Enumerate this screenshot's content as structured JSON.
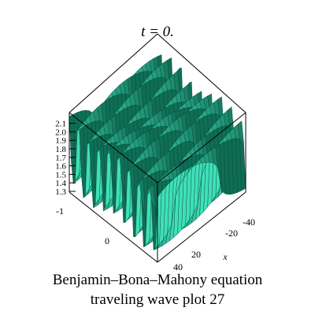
{
  "chart_data": {
    "type": "surface3d",
    "title": "t = 0.",
    "xlabel": "x",
    "ylabel": "",
    "zlabel": "",
    "x_ticks": [
      "-40",
      "-20",
      "20",
      "40"
    ],
    "y_ticks": [
      "-1",
      "0"
    ],
    "z_ticks": [
      "1.3",
      "1.4",
      "1.5",
      "1.6",
      "1.7",
      "1.8",
      "1.9",
      "2.0",
      "2.1"
    ],
    "xlim": [
      -50,
      50
    ],
    "ylim": [
      -1.5,
      1.5
    ],
    "zlim": [
      1.25,
      2.15
    ],
    "colors": {
      "surface_light": "#3fe0b8",
      "surface_dark": "#0f6e55",
      "box": "#000000"
    }
  },
  "caption": {
    "line1": "Benjamin–Bona–Mahony  equation",
    "line2": "traveling wave plot 27"
  }
}
